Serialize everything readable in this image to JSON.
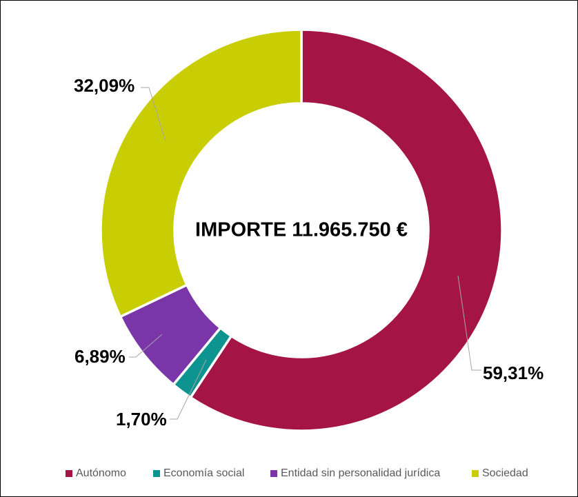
{
  "chart_data": {
    "type": "pie",
    "subtype": "donut",
    "center_label": "IMPORTE 11.965.750 €",
    "categories": [
      "Autónomo",
      "Economía social",
      "Entidad sin personalidad jurídica",
      "Sociedad"
    ],
    "values": [
      59.31,
      1.7,
      6.89,
      32.09
    ],
    "value_unit": "percent",
    "start_angle_deg": 0,
    "direction": "clockwise",
    "hole_ratio": 0.63,
    "legend_position": "bottom",
    "slices": [
      {
        "name": "Autónomo",
        "value": 59.31,
        "label": "59,31%",
        "color": "#A41445"
      },
      {
        "name": "Economía social",
        "value": 1.7,
        "label": "1,70%",
        "color": "#0E9490"
      },
      {
        "name": "Entidad sin personalidad jurídica",
        "value": 6.89,
        "label": "6,89%",
        "color": "#7A35A8"
      },
      {
        "name": "Sociedad",
        "value": 32.09,
        "label": "32,09%",
        "color": "#C9CE04"
      }
    ]
  },
  "colors": {
    "background": "#FFFFFF",
    "slice_separator": "#FFFFFF",
    "leader_line": "#A6A6A6",
    "data_label_text": "#000000",
    "legend_text": "#595959",
    "frame_border": "#000000"
  }
}
